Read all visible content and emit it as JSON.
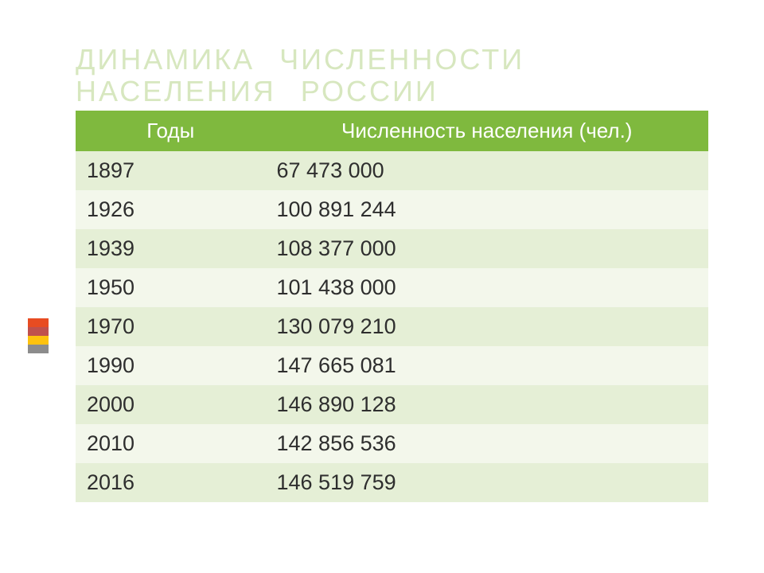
{
  "title": {
    "line1": "ДИНАМИКА ЧИСЛЕННОСТИ",
    "line2": "НАСЕЛЕНИЯ РОССИИ",
    "color": "#d7e7bf",
    "fontsize": 36
  },
  "accent_bars": {
    "colors": [
      "#e84c22",
      "#c0504d",
      "#fec20e",
      "#8c8c8c"
    ]
  },
  "table": {
    "type": "table",
    "header_bg": "#7fb93e",
    "header_text_color": "#ffffff",
    "row_bg_odd": "#e5efd6",
    "row_bg_even": "#f3f7eb",
    "text_color": "#2e2e2e",
    "columns": [
      "Годы",
      "Численность населения (чел.)"
    ],
    "rows": [
      [
        "1897",
        " 67 473 000"
      ],
      [
        "1926",
        "100 891 244"
      ],
      [
        "1939",
        "108 377 000"
      ],
      [
        "1950",
        "101 438 000"
      ],
      [
        "1970",
        "130 079 210"
      ],
      [
        "1990",
        "147 665 081"
      ],
      [
        "2000",
        "146 890 128"
      ],
      [
        "2010",
        "142 856 536"
      ],
      [
        "2016",
        "146 519 759"
      ]
    ]
  }
}
